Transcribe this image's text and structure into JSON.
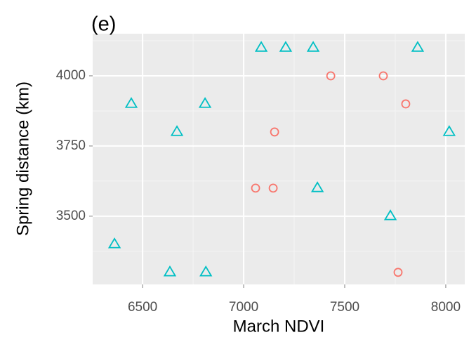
{
  "chart_data": {
    "type": "scatter",
    "title": "(e)",
    "x_label": "March NDVI",
    "y_label": "Spring distance (km)",
    "xlim": [
      6253,
      8094
    ],
    "xticks": [
      6500,
      7000,
      7500,
      8000
    ],
    "ylim": [
      3257,
      4150
    ],
    "yticks": [
      3500,
      3750,
      4000
    ],
    "grid": true,
    "minor_grid": true,
    "series": [
      {
        "color": "#00BFC4",
        "marker": "triangle",
        "x": [
          7087,
          7208,
          7344,
          7861,
          6444,
          6809,
          6670,
          8017,
          7365,
          7726,
          6361,
          6635,
          6813
        ],
        "y": [
          4100,
          4100,
          4100,
          4100,
          3900,
          3900,
          3800,
          3800,
          3600,
          3500,
          3400,
          3300,
          3300
        ]
      },
      {
        "color": "#F8766D",
        "marker": "circle",
        "x": [
          7431,
          7691,
          7802,
          7153,
          7059,
          7146,
          7764
        ],
        "y": [
          4000,
          4000,
          3900,
          3800,
          3600,
          3600,
          3300
        ]
      }
    ]
  }
}
